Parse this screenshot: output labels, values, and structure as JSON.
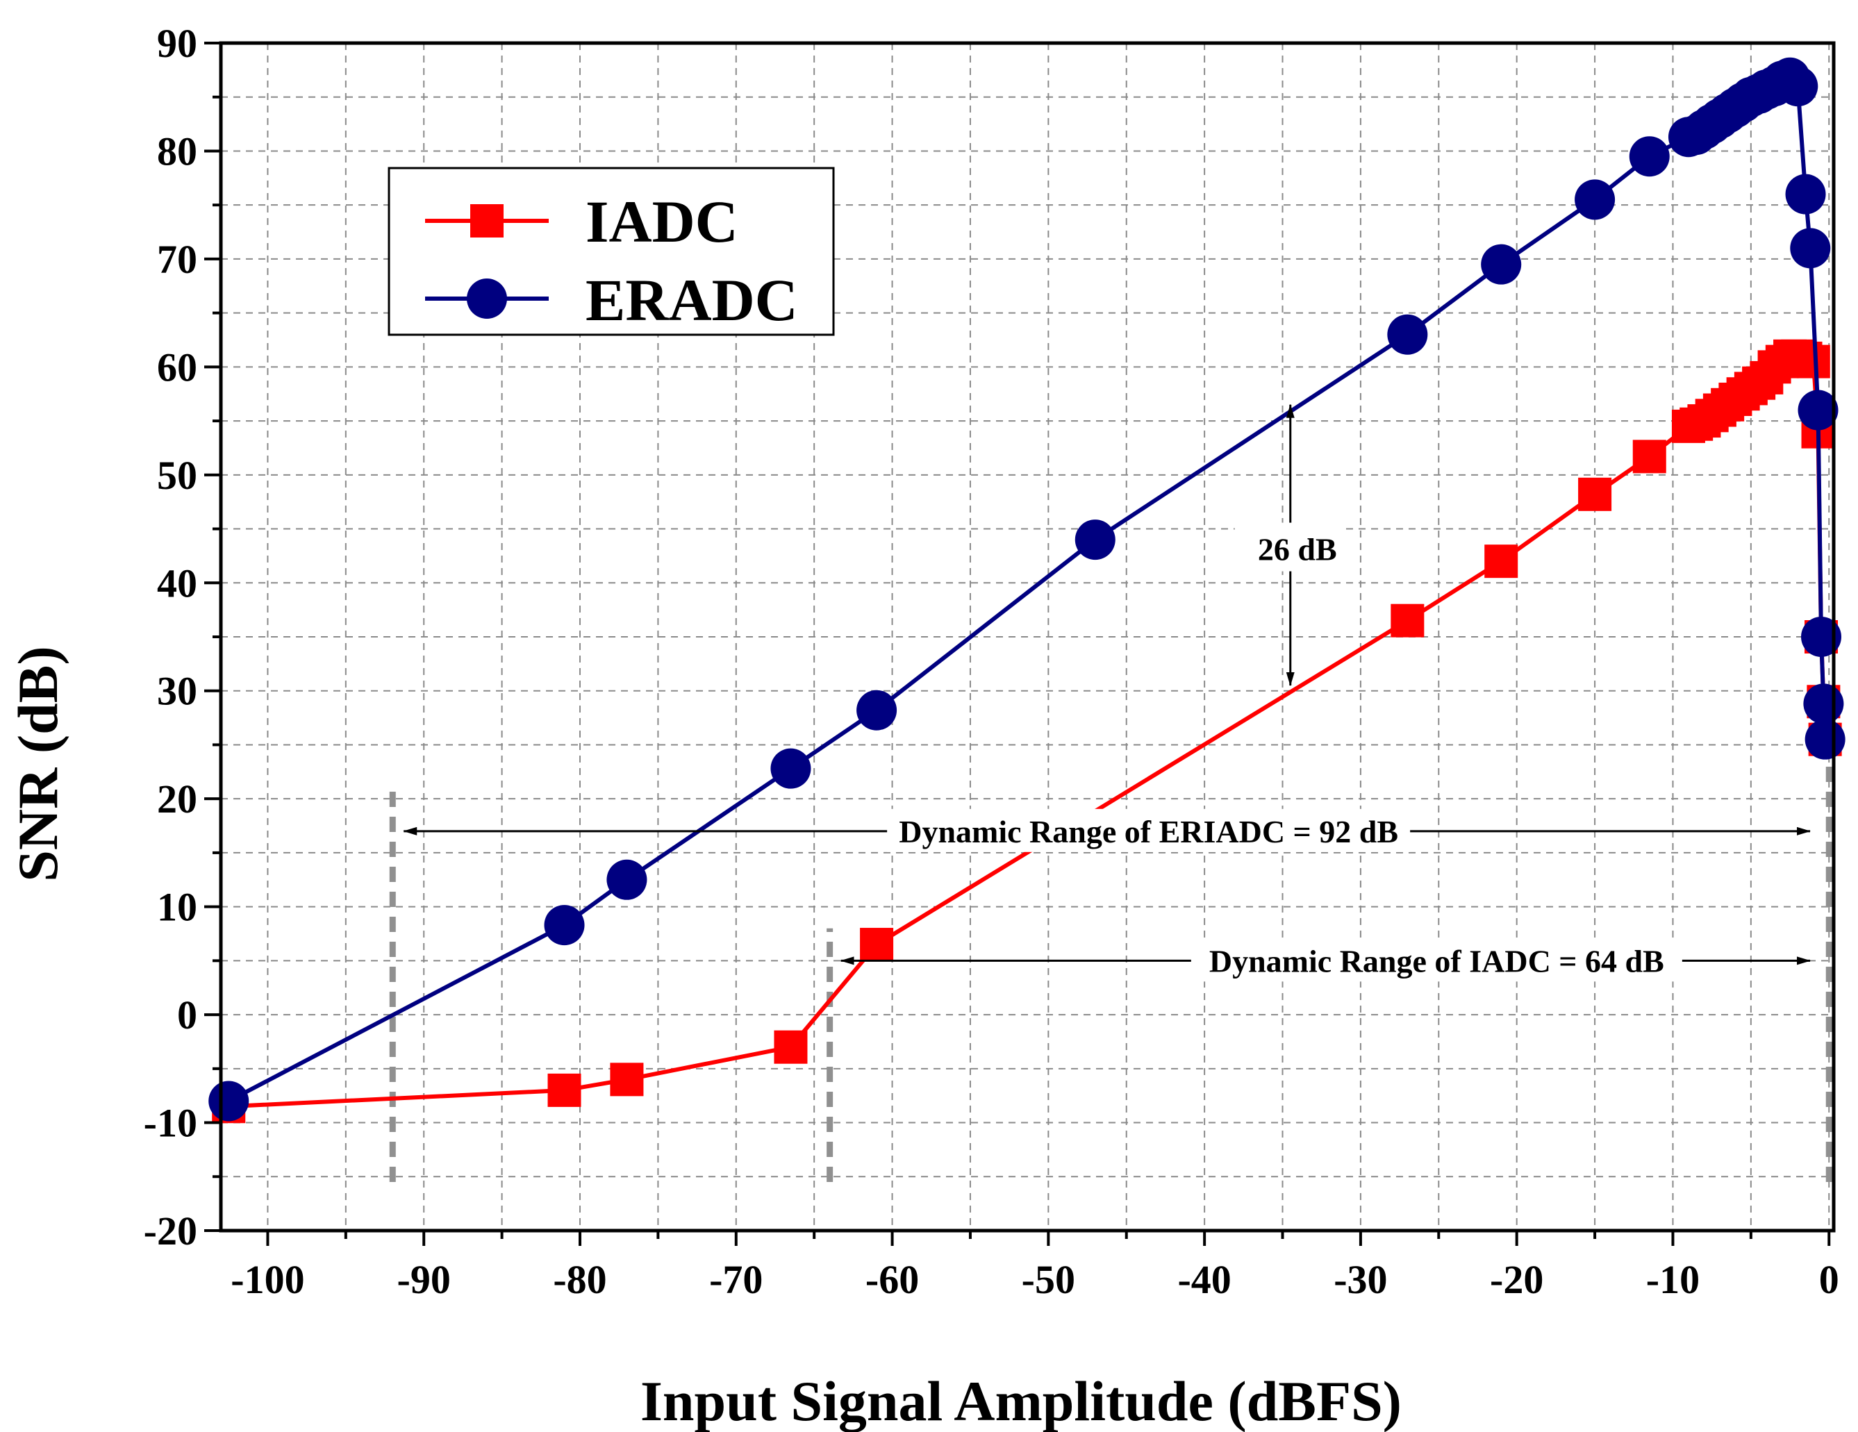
{
  "chart_data": {
    "type": "line",
    "title": "",
    "xlabel": "Input Signal Amplitude (dBFS)",
    "ylabel": "SNR (dB)",
    "xlim": [
      -103,
      0.3
    ],
    "ylim": [
      -20,
      90
    ],
    "xticks": [
      -100,
      -90,
      -80,
      -70,
      -60,
      -50,
      -40,
      -30,
      -20,
      -10,
      0
    ],
    "yticks": [
      -20,
      -10,
      0,
      10,
      20,
      30,
      40,
      50,
      60,
      70,
      80,
      90
    ],
    "grid": true,
    "legend_position": "top-left",
    "series": [
      {
        "name": "IADC",
        "color": "#ff0000",
        "marker": "square",
        "points": [
          [
            -102.5,
            -8.5
          ],
          [
            -81,
            -7
          ],
          [
            -77,
            -6
          ],
          [
            -66.5,
            -3
          ],
          [
            -61,
            6.5
          ],
          [
            -27,
            36.5
          ],
          [
            -21,
            42
          ],
          [
            -15,
            48.2
          ],
          [
            -11.5,
            51.7
          ],
          [
            -9,
            54.5
          ],
          [
            -8.5,
            54.7
          ],
          [
            -8,
            55
          ],
          [
            -7.5,
            55.5
          ],
          [
            -7,
            56
          ],
          [
            -6.5,
            56.5
          ],
          [
            -6,
            57
          ],
          [
            -5.5,
            57.5
          ],
          [
            -5,
            58
          ],
          [
            -4.5,
            58.5
          ],
          [
            -4,
            59
          ],
          [
            -3.5,
            60
          ],
          [
            -3,
            60.5
          ],
          [
            -2.5,
            61
          ],
          [
            -2,
            61
          ],
          [
            -1.5,
            60.8
          ],
          [
            -1,
            60.5
          ],
          [
            -0.7,
            54
          ],
          [
            -0.5,
            35
          ],
          [
            -0.35,
            29
          ],
          [
            -0.25,
            25.5
          ]
        ]
      },
      {
        "name": "ERADC",
        "color": "#000080",
        "marker": "circle",
        "points": [
          [
            -102.5,
            -8
          ],
          [
            -81,
            8.3
          ],
          [
            -77,
            12.5
          ],
          [
            -66.5,
            22.8
          ],
          [
            -61,
            28.2
          ],
          [
            -47,
            44
          ],
          [
            -27,
            63
          ],
          [
            -21,
            69.5
          ],
          [
            -15,
            75.5
          ],
          [
            -11.5,
            79.5
          ],
          [
            -9,
            81.3
          ],
          [
            -8.5,
            81.5
          ],
          [
            -8,
            82
          ],
          [
            -7.5,
            82.5
          ],
          [
            -7,
            83
          ],
          [
            -6.5,
            83.5
          ],
          [
            -6,
            84
          ],
          [
            -5.5,
            84.5
          ],
          [
            -5,
            85
          ],
          [
            -4.5,
            85.3
          ],
          [
            -4,
            85.7
          ],
          [
            -3.5,
            86
          ],
          [
            -3,
            86.5
          ],
          [
            -2.5,
            86.8
          ],
          [
            -2,
            86
          ],
          [
            -1.5,
            76
          ],
          [
            -1.2,
            71
          ],
          [
            -0.7,
            56
          ],
          [
            -0.5,
            35
          ],
          [
            -0.35,
            28.8
          ],
          [
            -0.25,
            25.5
          ]
        ]
      }
    ],
    "annotations": [
      {
        "text": "26 dB",
        "type": "double-arrow",
        "x": -34.5,
        "y_from": 56.5,
        "y_to": 30.5,
        "label_y": 43
      },
      {
        "text": "Dynamic Range of ERIADC = 92 dB",
        "type": "double-arrow",
        "y": 17,
        "x_from": -92,
        "x_to": -0.5
      },
      {
        "text": "Dynamic Range of IADC = 64 dB",
        "type": "double-arrow",
        "y": 5,
        "x_from": -64,
        "x_to": -0.5
      }
    ],
    "reference_lines": [
      {
        "x": -92,
        "y_from": -15.5,
        "y_to": 21,
        "style": "dashed"
      },
      {
        "x": -64,
        "y_from": -15.5,
        "y_to": 8,
        "style": "dashed"
      },
      {
        "x": 0,
        "y_from": -15.5,
        "y_to": 26,
        "style": "dashed"
      }
    ]
  }
}
